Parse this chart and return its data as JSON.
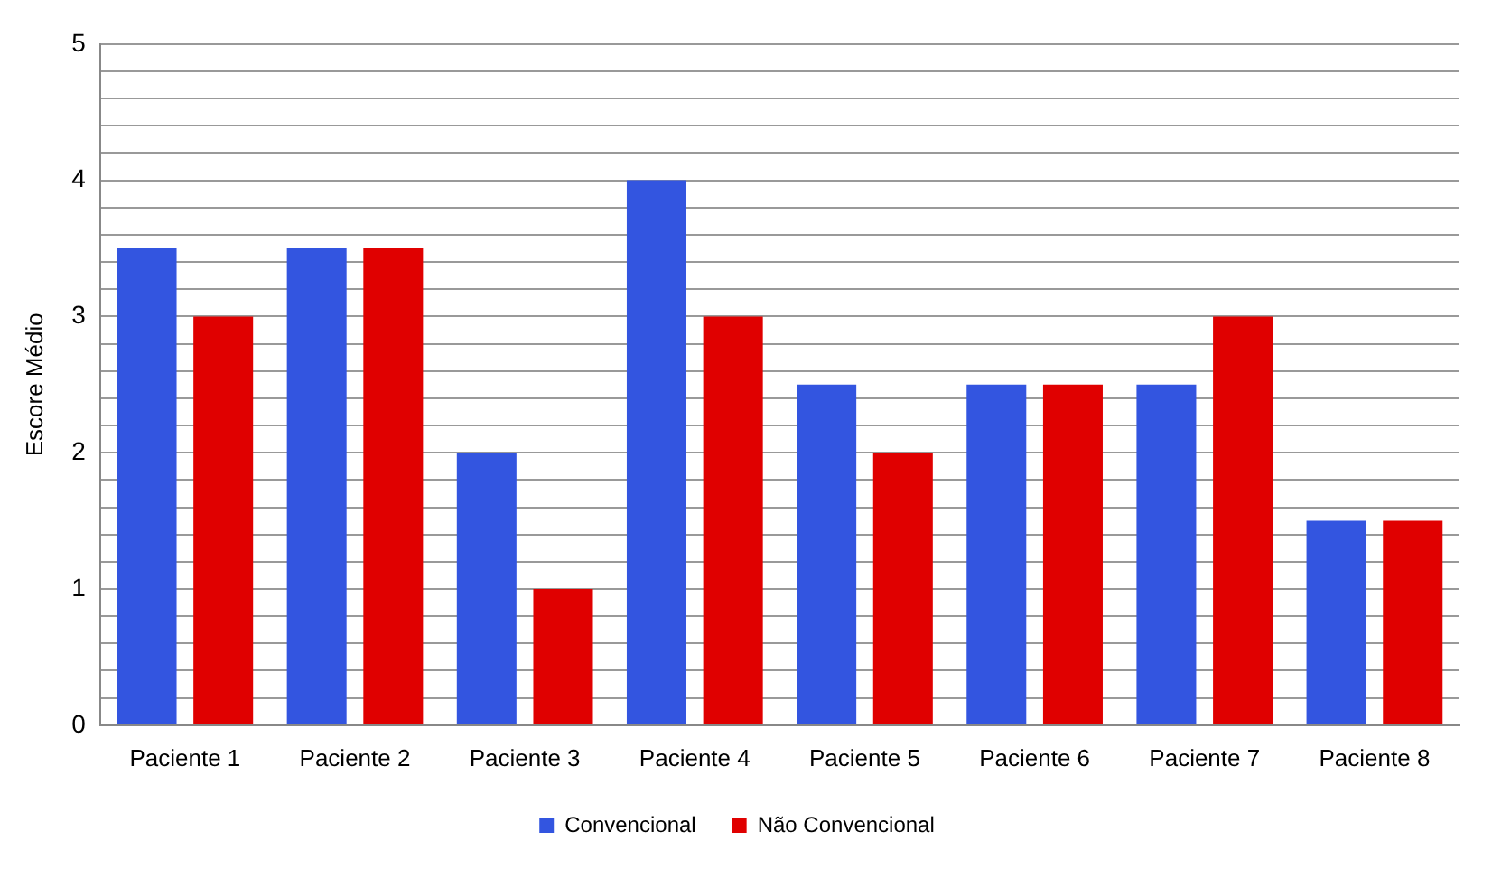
{
  "chart_data": {
    "type": "bar",
    "ylabel": "Escore Médio",
    "categories": [
      "Paciente 1",
      "Paciente 2",
      "Paciente 3",
      "Paciente 4",
      "Paciente 5",
      "Paciente 6",
      "Paciente 7",
      "Paciente 8"
    ],
    "series": [
      {
        "name": "Convencional",
        "color": "#3355e0",
        "values": [
          3.5,
          3.5,
          2,
          4,
          2.5,
          2.5,
          2.5,
          1.5
        ]
      },
      {
        "name": "Não Convencional",
        "color": "#e00000",
        "values": [
          3,
          3.5,
          1,
          3,
          2,
          2.5,
          3,
          1.5
        ]
      }
    ],
    "ylim": [
      0,
      5
    ],
    "yticks": [
      0,
      {
        "value": 0.2,
        "label": null
      },
      {
        "value": 0.4,
        "label": null
      },
      {
        "value": 0.6,
        "label": null
      },
      {
        "value": 0.8,
        "label": null
      },
      1,
      {
        "value": 1.2,
        "label": null
      },
      {
        "value": 1.4,
        "label": null
      },
      {
        "value": 1.6,
        "label": null
      },
      {
        "value": 1.8,
        "label": null
      },
      2,
      {
        "value": 2.2,
        "label": null
      },
      {
        "value": 2.4,
        "label": null
      },
      {
        "value": 2.6,
        "label": null
      },
      {
        "value": 2.8,
        "label": null
      },
      3,
      {
        "value": 3.2,
        "label": null
      },
      {
        "value": 3.4,
        "label": null
      },
      {
        "value": 3.6,
        "label": null
      },
      {
        "value": 3.8,
        "label": null
      },
      4,
      {
        "value": 4.2,
        "label": null
      },
      {
        "value": 4.4,
        "label": null
      },
      {
        "value": 4.6,
        "label": null
      },
      {
        "value": 4.8,
        "label": null
      },
      5
    ],
    "grid": "y",
    "legend": "bottom"
  }
}
